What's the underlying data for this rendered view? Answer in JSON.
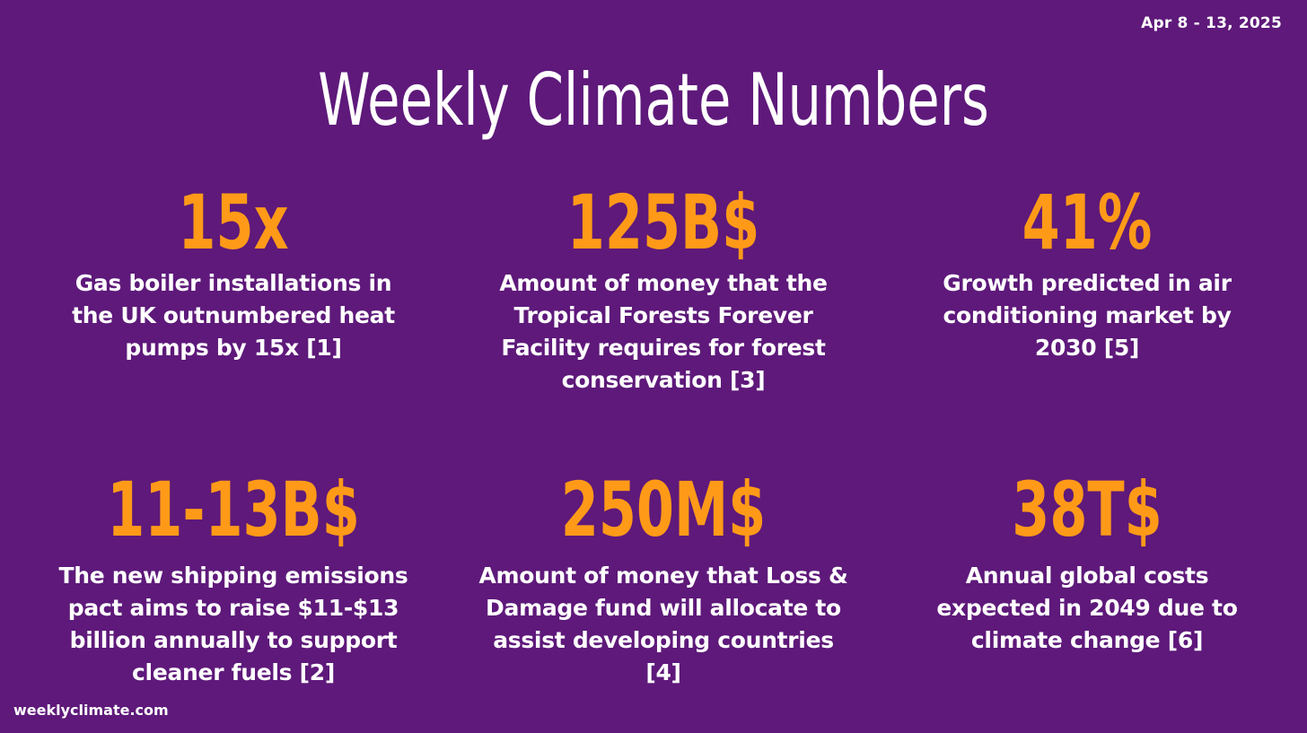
{
  "header": {
    "date_range": "Apr 8 - 13, 2025",
    "title": "Weekly Climate Numbers"
  },
  "stats": [
    {
      "value": "15x",
      "description": "Gas boiler installations in the UK outnumbered heat pumps by 15x [1]"
    },
    {
      "value": "125B$",
      "description": "Amount of money that the Tropical Forests Forever Facility requires for forest conservation [3]"
    },
    {
      "value": "41%",
      "description": "Growth predicted in air conditioning market by 2030 [5]"
    },
    {
      "value": "11-13B$",
      "description": "The new shipping emissions pact aims to raise $11-$13 billion annually to support cleaner fuels [2]"
    },
    {
      "value": "250M$",
      "description": "Amount of money that Loss & Damage fund will allocate to assist developing countries [4]"
    },
    {
      "value": "38T$",
      "description": "Annual global costs expected in 2049 due to climate change [6]"
    }
  ],
  "footer": {
    "site": "weeklyclimate.com"
  },
  "colors": {
    "background": "#5e197a",
    "accent": "#ff9a18",
    "text": "#ffffff"
  }
}
